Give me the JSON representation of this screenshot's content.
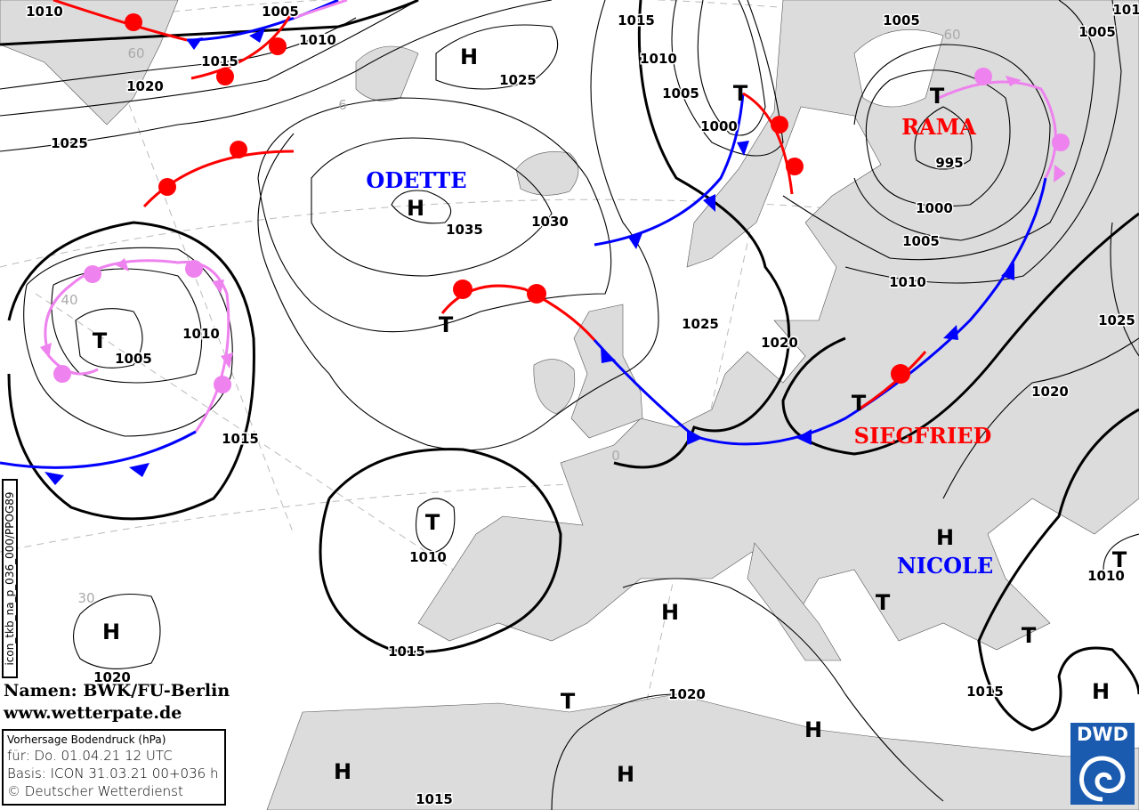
{
  "map": {
    "colors": {
      "land": "#dcdcdc",
      "sea": "#ffffff",
      "warm_front": "#ff0000",
      "cold_front": "#0000ff",
      "occlusion": "#ee82ee",
      "isobar": "#000000"
    },
    "isobar_labels": [
      "1010",
      "1005",
      "1010",
      "1015",
      "1020",
      "1025",
      "1025",
      "1015",
      "1010",
      "1005",
      "1000",
      "1005",
      "1005",
      "101",
      "995",
      "1000",
      "1005",
      "1010",
      "1025",
      "1020",
      "1030",
      "1035",
      "1025",
      "1020",
      "1010",
      "1005",
      "1015",
      "1010",
      "1015",
      "1020",
      "1020",
      "1015",
      "1010",
      "1015"
    ],
    "highs": [
      "H",
      "H",
      "H",
      "H",
      "H",
      "H",
      "H",
      "H",
      "H"
    ],
    "lows": [
      "T",
      "T",
      "T",
      "T",
      "T",
      "T",
      "T",
      "T",
      "T",
      "T"
    ],
    "names": {
      "odette": "ODETTE",
      "rama": "RAMA",
      "siegfried": "SIEGFRIED",
      "nicole": "NICOLE"
    },
    "grid_labels": [
      "60",
      "6",
      "40",
      "0",
      "30",
      "60"
    ]
  },
  "credit": {
    "line1": "Namen: BWK/FU-Berlin",
    "line2": "www.wetterpate.de"
  },
  "info": {
    "title": "Vorhersage Bodendruck (hPa)",
    "valid": "für:  Do. 01.04.21  12 UTC",
    "basis": "Basis: ICON  31.03.21 00+036 h",
    "copyright": "© Deutscher Wetterdienst"
  },
  "product_code": "icon_tkb_na_p_036_000/PPOG89",
  "logo": {
    "text": "DWD"
  }
}
